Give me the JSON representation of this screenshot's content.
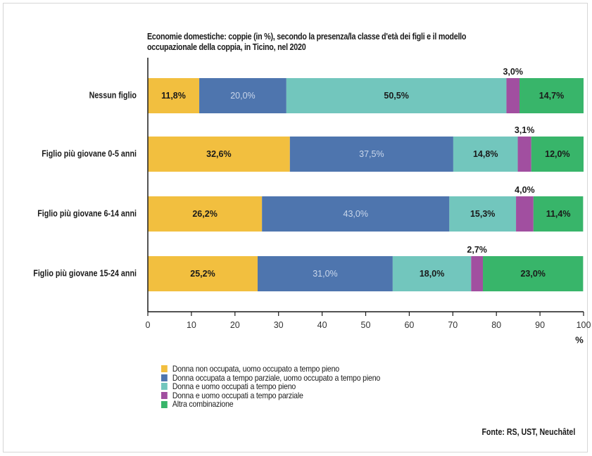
{
  "chart_data": {
    "type": "bar",
    "orientation": "horizontal",
    "stacked": true,
    "title_lines": [
      "Economie domestiche: coppie (in %), secondo la presenza/la classe d'età dei figli e il modello",
      "occupazionale della coppia, in Ticino, nel 2020"
    ],
    "categories": [
      "Nessun figlio",
      "Figlio più giovane 0-5 anni",
      "Figlio più giovane 6-14 anni",
      "Figlio più giovane 15-24 anni"
    ],
    "series": [
      {
        "name": "Donna non occupata, uomo occupato a tempo pieno",
        "color": "#f2bf3f",
        "label_color": "#1a1a1a",
        "values": [
          11.8,
          32.6,
          26.2,
          25.2
        ],
        "labels": [
          "11,8%",
          "32,6%",
          "26,2%",
          "25,2%"
        ]
      },
      {
        "name": "Donna occupata a tempo parziale, uomo occupato a tempo pieno",
        "color": "#4e75ae",
        "label_color": "#c9d6ea",
        "values": [
          20.0,
          37.5,
          43.0,
          31.0
        ],
        "labels": [
          "20,0%",
          "37,5%",
          "43,0%",
          "31,0%"
        ]
      },
      {
        "name": "Donna e uomo occupati a tempo pieno",
        "color": "#72c6bd",
        "label_color": "#1a1a1a",
        "values": [
          50.5,
          14.8,
          15.3,
          18.0
        ],
        "labels": [
          "50,5%",
          "14,8%",
          "15,3%",
          "18,0%"
        ]
      },
      {
        "name": "Donna e uomo occupati a tempo parziale",
        "color": "#a14fa0",
        "label_color": "#1a1a1a",
        "values": [
          3.0,
          3.1,
          4.0,
          2.7
        ],
        "labels": [
          "3,0%",
          "3,1%",
          "4,0%",
          "2,7%"
        ],
        "label_above": true
      },
      {
        "name": "Altra combinazione",
        "color": "#38b56a",
        "label_color": "#1a1a1a",
        "values": [
          14.7,
          12.0,
          11.4,
          23.0
        ],
        "labels": [
          "14,7%",
          "12,0%",
          "11,4%",
          "23,0%"
        ]
      }
    ],
    "xlim": [
      0,
      100
    ],
    "xticks": [
      "0",
      "10",
      "20",
      "30",
      "40",
      "50",
      "60",
      "70",
      "80",
      "90",
      "100"
    ],
    "xunit": "%",
    "grid": false,
    "legend_position": "bottom-left",
    "source": "Fonte: RS, UST, Neuchâtel"
  }
}
